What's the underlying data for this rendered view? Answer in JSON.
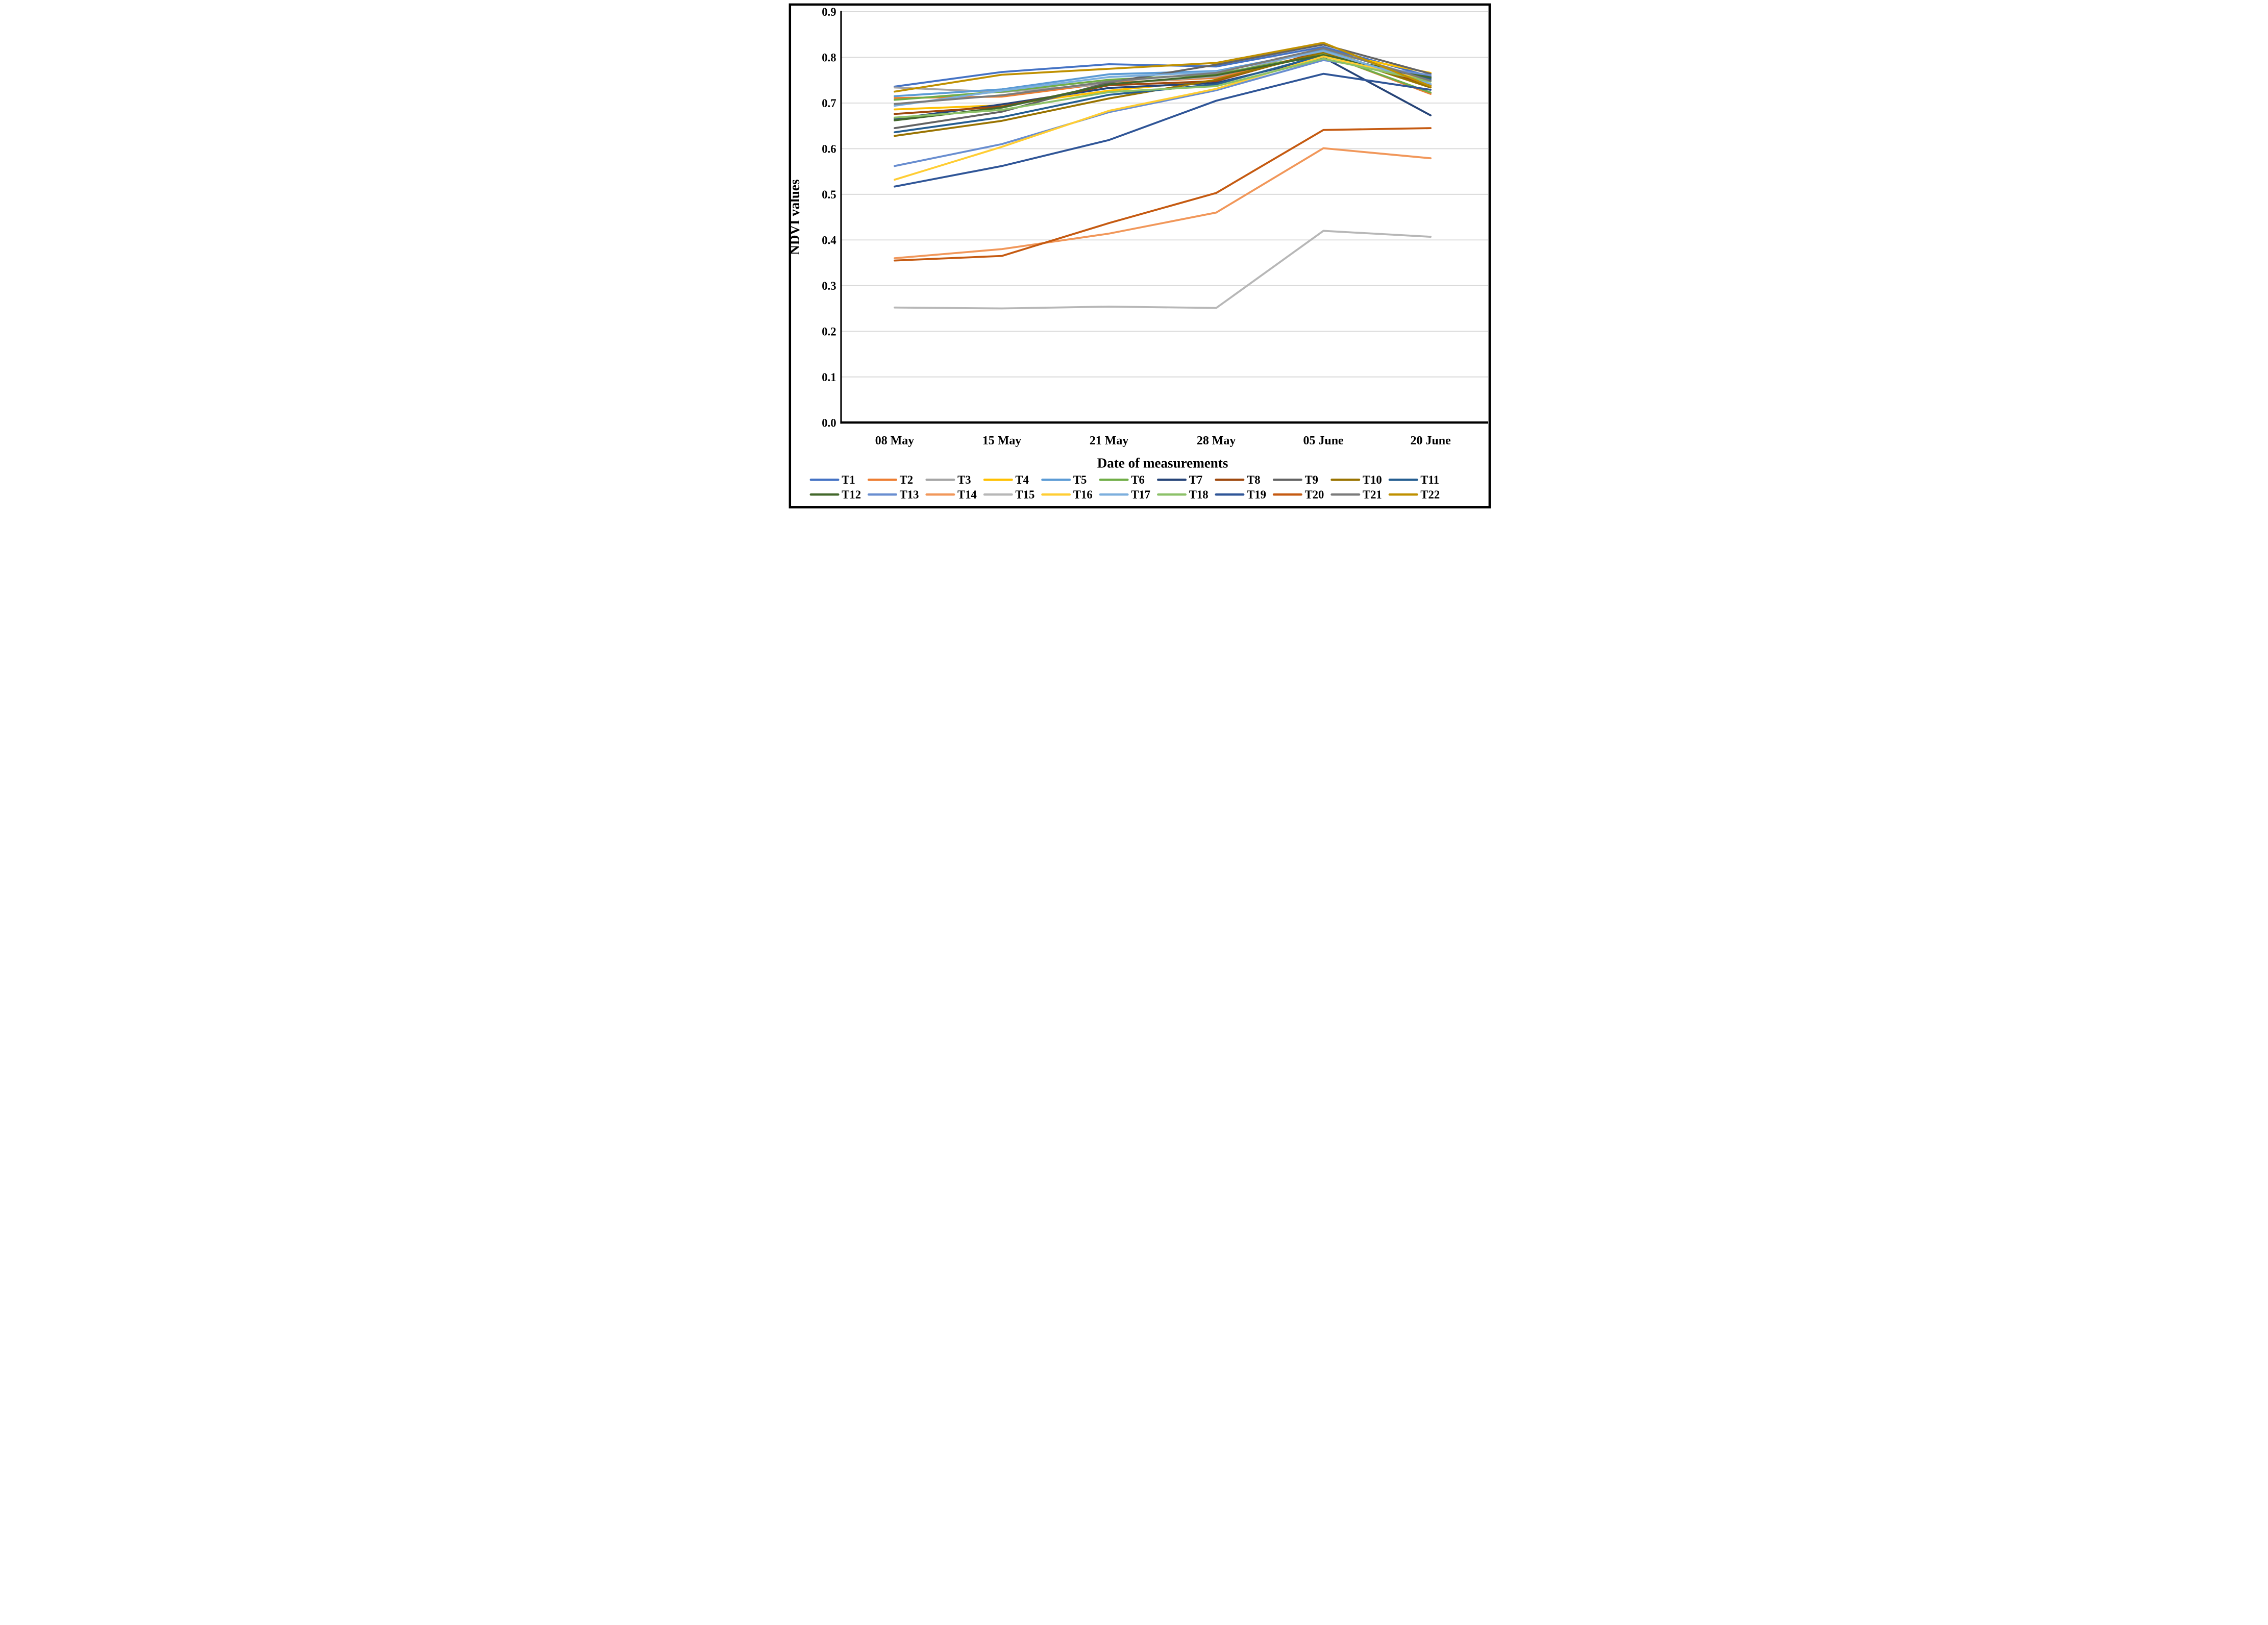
{
  "chart_data": {
    "type": "line",
    "title": "",
    "xlabel": "Date of measurements",
    "ylabel": "NDVI values",
    "categories": [
      "08 May",
      "15 May",
      "21 May",
      "28 May",
      "05 June",
      "20 June"
    ],
    "y_ticks": [
      "0.0",
      "0.1",
      "0.2",
      "0.3",
      "0.4",
      "0.5",
      "0.6",
      "0.7",
      "0.8",
      "0.9"
    ],
    "ylim": [
      0.0,
      0.9
    ],
    "grid": true,
    "legend_position": "bottom",
    "legend_rows": [
      [
        "T1",
        "T2",
        "T3",
        "T4",
        "T5",
        "T6",
        "T7",
        "T8",
        "T9",
        "T10",
        "T11"
      ],
      [
        "T12",
        "T13",
        "T14",
        "T15",
        "T16",
        "T17",
        "T18",
        "T19",
        "T20",
        "T21",
        "T22"
      ]
    ],
    "series": [
      {
        "name": "T1",
        "color": "#4472C4",
        "values": [
          0.736,
          0.768,
          0.785,
          0.78,
          0.823,
          0.758
        ]
      },
      {
        "name": "T2",
        "color": "#ED7D31",
        "values": [
          0.711,
          0.714,
          0.744,
          0.755,
          0.808,
          0.72
        ]
      },
      {
        "name": "T3",
        "color": "#A5A5A5",
        "values": [
          0.734,
          0.724,
          0.742,
          0.758,
          0.819,
          0.751
        ]
      },
      {
        "name": "T4",
        "color": "#FFC000",
        "values": [
          0.686,
          0.695,
          0.727,
          0.75,
          0.812,
          0.766
        ]
      },
      {
        "name": "T5",
        "color": "#5B9BD5",
        "values": [
          0.715,
          0.73,
          0.763,
          0.77,
          0.816,
          0.74
        ]
      },
      {
        "name": "T6",
        "color": "#70AD47",
        "values": [
          0.707,
          0.725,
          0.751,
          0.763,
          0.807,
          0.723
        ]
      },
      {
        "name": "T7",
        "color": "#264478",
        "values": [
          0.665,
          0.697,
          0.733,
          0.744,
          0.8,
          0.673
        ]
      },
      {
        "name": "T8",
        "color": "#9E480E",
        "values": [
          0.676,
          0.692,
          0.739,
          0.748,
          0.814,
          0.738
        ]
      },
      {
        "name": "T9",
        "color": "#636363",
        "values": [
          0.645,
          0.681,
          0.745,
          0.784,
          0.828,
          0.764
        ]
      },
      {
        "name": "T10",
        "color": "#997300",
        "values": [
          0.628,
          0.661,
          0.71,
          0.751,
          0.811,
          0.734
        ]
      },
      {
        "name": "T11",
        "color": "#255E91",
        "values": [
          0.636,
          0.669,
          0.718,
          0.741,
          0.805,
          0.753
        ]
      },
      {
        "name": "T12",
        "color": "#43682B",
        "values": [
          0.662,
          0.69,
          0.741,
          0.761,
          0.805,
          0.756
        ]
      },
      {
        "name": "T13",
        "color": "#698ED0",
        "values": [
          0.562,
          0.61,
          0.68,
          0.728,
          0.794,
          0.761
        ]
      },
      {
        "name": "T14",
        "color": "#F1975A",
        "values": [
          0.36,
          0.38,
          0.414,
          0.46,
          0.601,
          0.579
        ]
      },
      {
        "name": "T15",
        "color": "#B7B7B7",
        "values": [
          0.252,
          0.25,
          0.254,
          0.251,
          0.42,
          0.407
        ]
      },
      {
        "name": "T16",
        "color": "#FFCD33",
        "values": [
          0.532,
          0.604,
          0.683,
          0.731,
          0.802,
          0.748
        ]
      },
      {
        "name": "T17",
        "color": "#7CAFDD",
        "values": [
          0.694,
          0.727,
          0.757,
          0.768,
          0.814,
          0.742
        ]
      },
      {
        "name": "T18",
        "color": "#8CC168",
        "values": [
          0.668,
          0.685,
          0.724,
          0.737,
          0.797,
          0.747
        ]
      },
      {
        "name": "T19",
        "color": "#2F5597",
        "values": [
          0.517,
          0.562,
          0.619,
          0.705,
          0.764,
          0.729
        ]
      },
      {
        "name": "T20",
        "color": "#C55A11",
        "values": [
          0.355,
          0.365,
          0.437,
          0.503,
          0.641,
          0.645
        ]
      },
      {
        "name": "T21",
        "color": "#7B7B7B",
        "values": [
          0.698,
          0.717,
          0.747,
          0.766,
          0.82,
          0.749
        ]
      },
      {
        "name": "T22",
        "color": "#BF9000",
        "values": [
          0.725,
          0.762,
          0.775,
          0.788,
          0.832,
          0.737
        ]
      }
    ]
  },
  "style_colors": {
    "background": "#FFFFFF",
    "figure_border": "#000000",
    "gridline": "#D9D9D9",
    "axis": "#000000",
    "text": "#000000"
  }
}
